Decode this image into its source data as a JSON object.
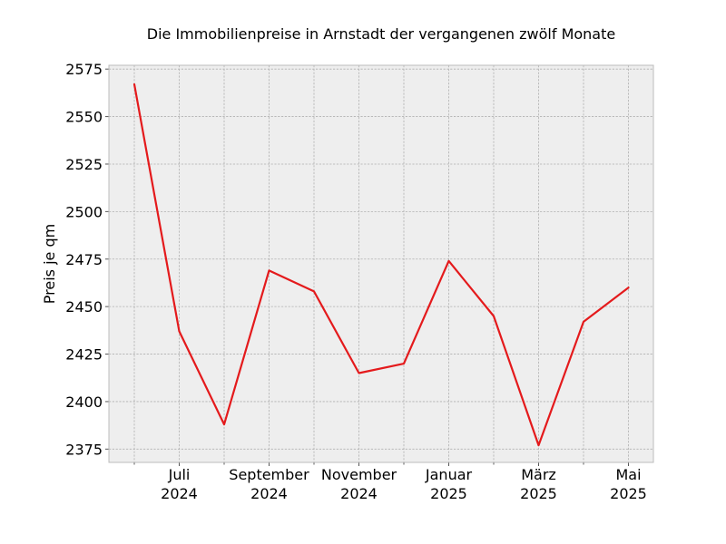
{
  "chart_data": {
    "type": "line",
    "title": "Die Immobilienpreise in Arnstadt der vergangenen zwölf Monate",
    "xlabel": "",
    "ylabel": "Preis je qm",
    "x": [
      "2024-06",
      "2024-07",
      "2024-08",
      "2024-09",
      "2024-10",
      "2024-11",
      "2024-12",
      "2025-01",
      "2025-02",
      "2025-03",
      "2025-04",
      "2025-05"
    ],
    "series": [
      {
        "values": [
          2567,
          2437,
          2388,
          2469,
          2458,
          2415,
          2420,
          2474,
          2445,
          2377,
          2442,
          2460
        ]
      }
    ],
    "ylim": [
      2368,
      2577
    ],
    "yticks": [
      2375,
      2400,
      2425,
      2450,
      2475,
      2500,
      2525,
      2550,
      2575
    ],
    "xticklabels": [
      {
        "at": "2024-07",
        "line1": "Juli",
        "line2": "2024"
      },
      {
        "at": "2024-09",
        "line1": "September",
        "line2": "2024"
      },
      {
        "at": "2024-11",
        "line1": "November",
        "line2": "2024"
      },
      {
        "at": "2025-01",
        "line1": "Januar",
        "line2": "2025"
      },
      {
        "at": "2025-03",
        "line1": "März",
        "line2": "2025"
      },
      {
        "at": "2025-05",
        "line1": "Mai",
        "line2": "2025"
      }
    ],
    "minor_ticks_at": [
      "2024-06",
      "2024-08",
      "2024-10",
      "2024-12",
      "2025-02",
      "2025-04"
    ],
    "grid": true,
    "colors": {
      "line": "#e41a1c",
      "plot_background": "#eeeeee",
      "grid": "#b0b0b0",
      "frame": "#bcbcbc"
    }
  }
}
